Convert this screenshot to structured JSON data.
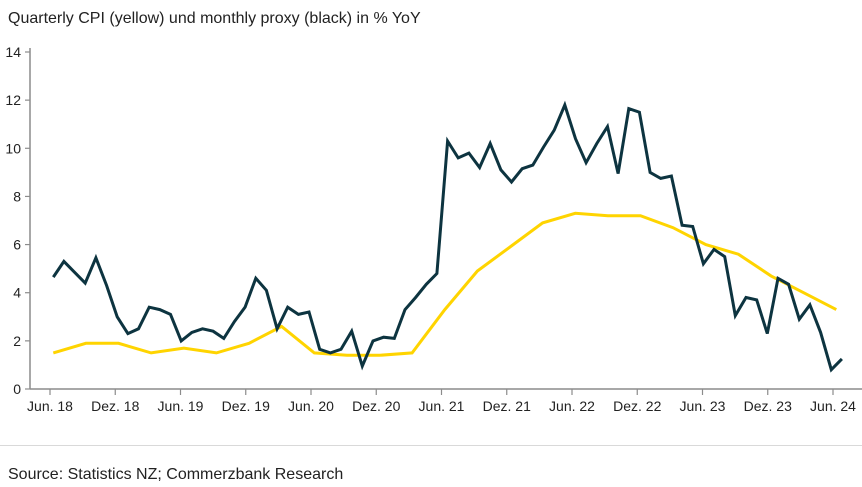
{
  "chart_data": {
    "type": "line",
    "title": "Quarterly CPI (yellow) und monthly proxy (black) in % YoY",
    "xlabel": "",
    "ylabel": "",
    "ylim": [
      0,
      14
    ],
    "yticks": [
      0,
      2,
      4,
      6,
      8,
      10,
      12,
      14
    ],
    "x_unit": "months since Jun. 18",
    "xlim": [
      0,
      75
    ],
    "xticks": [
      0,
      6,
      12,
      18,
      24,
      30,
      36,
      42,
      48,
      54,
      60,
      66,
      72
    ],
    "xtick_labels": [
      "Jun. 18",
      "Dez. 18",
      "Jun. 19",
      "Dez. 19",
      "Jun. 20",
      "Dez. 20",
      "Jun. 21",
      "Dez. 21",
      "Jun. 22",
      "Dez. 22",
      "Jun. 23",
      "Dez. 23",
      "Jun. 24"
    ],
    "grid": false,
    "series": [
      {
        "name": "Monthly proxy",
        "color": "#0d3440",
        "x_start": 0.3,
        "x_step": 0.98,
        "values": [
          4.65,
          5.3,
          4.85,
          4.4,
          5.45,
          4.3,
          3.0,
          2.3,
          2.5,
          3.4,
          3.3,
          3.1,
          2.0,
          2.35,
          2.5,
          2.4,
          2.1,
          2.8,
          3.4,
          4.6,
          4.1,
          2.5,
          3.4,
          3.1,
          3.2,
          1.65,
          1.5,
          1.65,
          2.4,
          0.95,
          2.0,
          2.15,
          2.1,
          3.3,
          3.8,
          4.35,
          4.8,
          10.3,
          9.6,
          9.8,
          9.2,
          10.2,
          9.1,
          8.6,
          9.15,
          9.3,
          10.05,
          10.75,
          11.8,
          10.4,
          9.4,
          10.2,
          10.9,
          8.95,
          11.65,
          11.5,
          9.0,
          8.75,
          8.85,
          6.8,
          6.75,
          5.2,
          5.8,
          5.5,
          3.05,
          3.8,
          3.7,
          2.3,
          4.6,
          4.35,
          2.9,
          3.5,
          2.35,
          0.8,
          1.25
        ]
      },
      {
        "name": "Quarterly CPI",
        "color": "#ffd400",
        "x_start": 0.3,
        "x_step": 3,
        "values": [
          1.5,
          1.9,
          1.9,
          1.5,
          1.7,
          1.5,
          1.9,
          2.6,
          1.5,
          1.4,
          1.4,
          1.5,
          3.3,
          4.9,
          5.9,
          6.9,
          7.3,
          7.2,
          7.2,
          6.7,
          6.0,
          5.6,
          4.7,
          4.0,
          3.3
        ]
      }
    ],
    "source": "Source: Statistics NZ; Commerzbank Research"
  }
}
